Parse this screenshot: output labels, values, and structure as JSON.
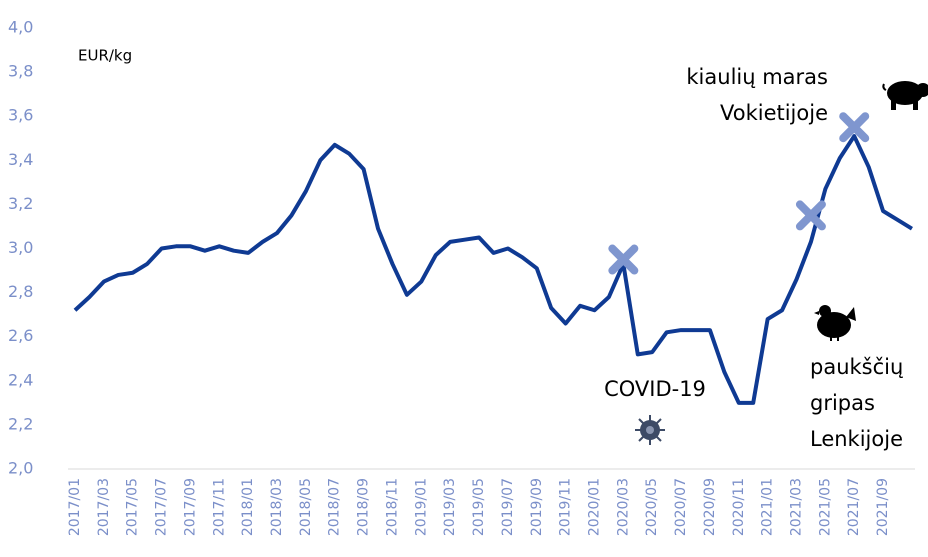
{
  "chart_data": {
    "type": "line",
    "unit_label": "EUR/kg",
    "categories": [
      "2017/01",
      null,
      "2017/03",
      null,
      "2017/05",
      null,
      "2017/07",
      null,
      "2017/09",
      null,
      "2017/11",
      null,
      "2018/01",
      null,
      "2018/03",
      null,
      "2018/05",
      null,
      "2018/07",
      null,
      "2018/09",
      null,
      "2018/11",
      null,
      "2019/01",
      null,
      "2019/03",
      null,
      "2019/05",
      null,
      "2019/07",
      null,
      "2019/09",
      null,
      "2019/11",
      null,
      "2020/01",
      null,
      "2020/03",
      null,
      "2020/05",
      null,
      "2020/07",
      null,
      "2020/09",
      null,
      "2020/11",
      null,
      "2021/01",
      null,
      "2021/03",
      null,
      "2021/05",
      null,
      "2021/07",
      null,
      "2021/09",
      null,
      null
    ],
    "series": [
      {
        "color": "#0f3a93",
        "values": [
          2.72,
          2.78,
          2.85,
          2.88,
          2.89,
          2.93,
          3.0,
          3.01,
          3.01,
          2.99,
          3.01,
          2.99,
          2.98,
          3.03,
          3.07,
          3.15,
          3.26,
          3.4,
          3.47,
          3.43,
          3.36,
          3.09,
          2.93,
          2.79,
          2.85,
          2.97,
          3.03,
          3.04,
          3.05,
          2.98,
          3.0,
          2.96,
          2.91,
          2.73,
          2.66,
          2.74,
          2.72,
          2.78,
          2.93,
          2.52,
          2.53,
          2.62,
          2.63,
          2.63,
          2.63,
          2.44,
          2.3,
          2.3,
          2.68,
          2.72,
          2.86,
          3.03,
          3.27,
          3.41,
          3.51,
          3.37,
          3.17,
          3.13,
          3.09
        ]
      }
    ],
    "markers": {
      "color": "#7f96cf",
      "points": [
        {
          "x": "2020/03",
          "value": 2.95
        },
        {
          "x": "2021/04",
          "value": 3.15
        },
        {
          "x": "2021/07",
          "value": 3.55
        }
      ]
    },
    "annotations": [
      [
        "kiaulių maras",
        "Vokietijoje"
      ],
      [
        "COVID-19"
      ],
      [
        "paukščių",
        "gripas",
        "Lenkijoje"
      ]
    ],
    "ylim": [
      2.0,
      4.0
    ],
    "yticks": [
      {
        "value": 2.0,
        "label": "2,0"
      },
      {
        "value": 2.2,
        "label": "2,2"
      },
      {
        "value": 2.4,
        "label": "2,4"
      },
      {
        "value": 2.6,
        "label": "2,6"
      },
      {
        "value": 2.8,
        "label": "2,8"
      },
      {
        "value": 3.0,
        "label": "3,0"
      },
      {
        "value": 3.2,
        "label": "3,2"
      },
      {
        "value": 3.4,
        "label": "3,4"
      },
      {
        "value": 3.6,
        "label": "3,6"
      },
      {
        "value": 3.8,
        "label": "3,8"
      },
      {
        "value": 4.0,
        "label": "4,0"
      }
    ],
    "tick_color": "#7b8fc9"
  }
}
